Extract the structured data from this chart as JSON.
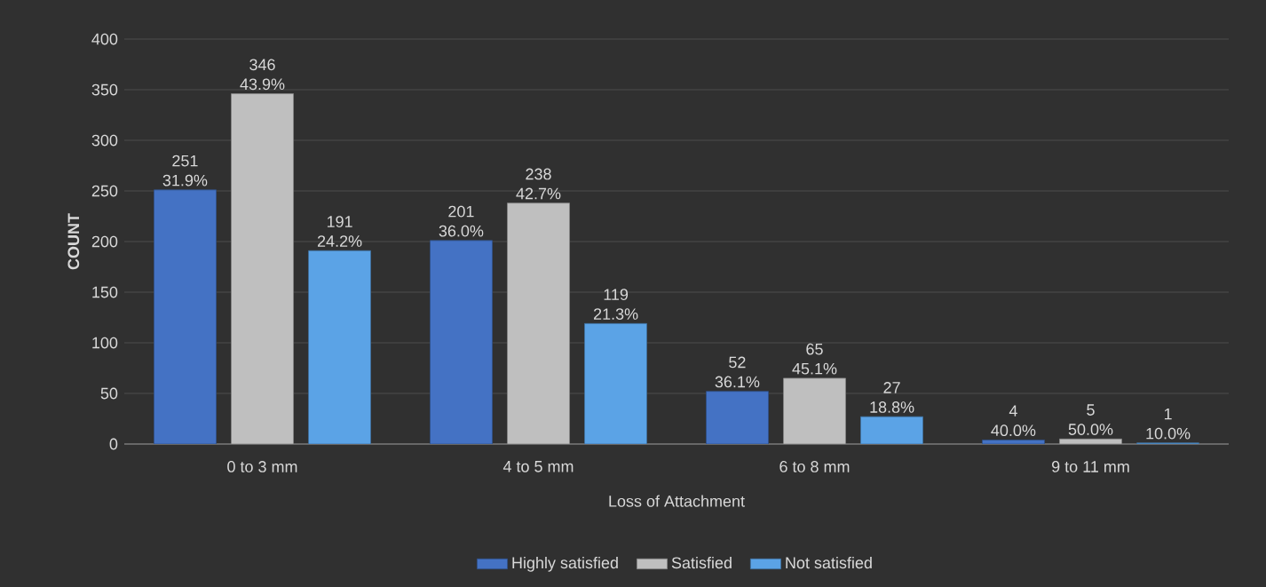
{
  "chart_data": {
    "type": "bar",
    "xlabel": "Loss of Attachment",
    "ylabel": "COUNT",
    "categories": [
      "0 to 3 mm",
      "4 to 5 mm",
      "6 to 8 mm",
      "9 to 11 mm"
    ],
    "series": [
      {
        "name": "Highly satisfied",
        "color": "#4472c4",
        "values": [
          251,
          201,
          52,
          4
        ],
        "value_labels": [
          "251 31.9%",
          "201 36.0%",
          "52 36.1%",
          "4 40.0%"
        ]
      },
      {
        "name": "Satisfied",
        "color": "#bfbfbf",
        "values": [
          346,
          238,
          65,
          5
        ],
        "value_labels": [
          "346 43.9%",
          "238 42.7%",
          "65 45.1%",
          "5 50.0%"
        ]
      },
      {
        "name": "Not satisfied",
        "color": "#5ba3e6",
        "values": [
          191,
          119,
          27,
          1
        ],
        "value_labels": [
          "191 24.2%",
          "119 21.3%",
          "27 18.8%",
          "1 10.0%"
        ]
      }
    ],
    "ylim": [
      0,
      400
    ],
    "yticks": [
      0,
      50,
      100,
      150,
      200,
      250,
      300,
      350,
      400
    ],
    "grid": "y",
    "legend": "bottom"
  }
}
